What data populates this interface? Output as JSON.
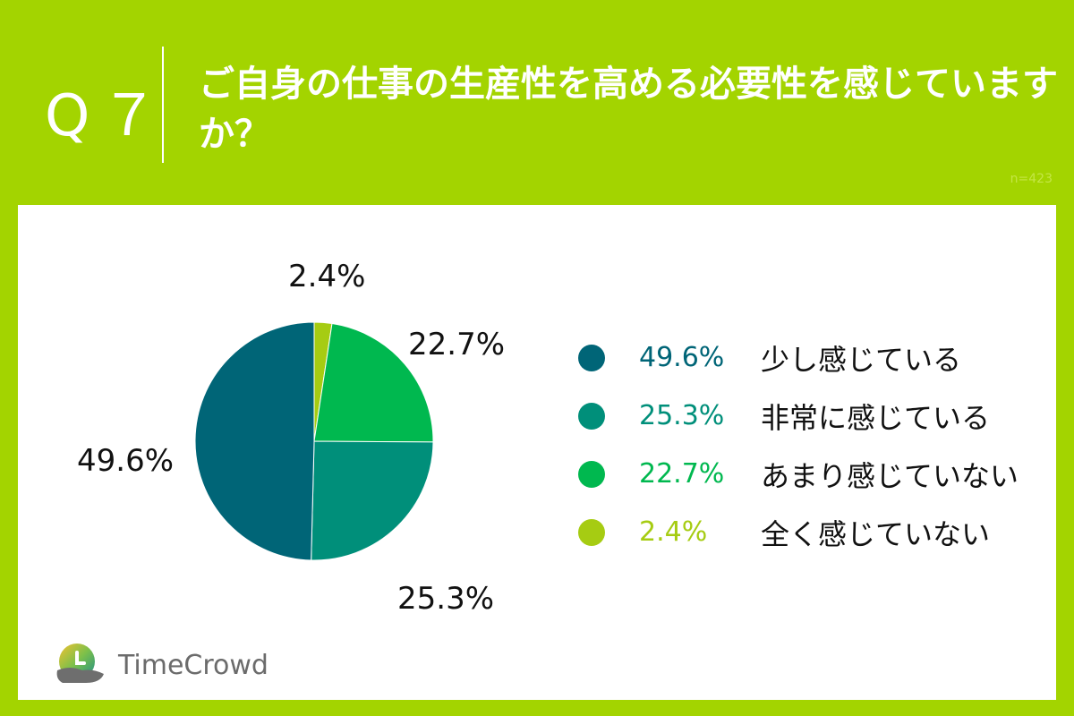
{
  "header": {
    "question_number": "Q７",
    "title": "ご自身の仕事の生産性を高める必要性を感じていますか？",
    "sample_size": "n=423"
  },
  "colors": {
    "background": "#a3d400",
    "panel": "#ffffff",
    "slice_1": "#006577",
    "slice_2": "#008f7a",
    "slice_3": "#00b84f",
    "slice_4": "#a6cc12"
  },
  "chart_data": {
    "type": "pie",
    "start": "12 o'clock",
    "direction": "clockwise",
    "slices": [
      {
        "label": "全く感じていない",
        "value": 2.4,
        "value_label": "2.4%",
        "color": "#a6cc12"
      },
      {
        "label": "あまり感じていない",
        "value": 22.7,
        "value_label": "22.7%",
        "color": "#00b84f"
      },
      {
        "label": "非常に感じている",
        "value": 25.3,
        "value_label": "25.3%",
        "color": "#008f7a"
      },
      {
        "label": "少し感じている",
        "value": 49.6,
        "value_label": "49.6%",
        "color": "#006577"
      }
    ],
    "legend": [
      {
        "value_label": "49.6%",
        "label": "少し感じている",
        "color": "#006577"
      },
      {
        "value_label": "25.3%",
        "label": "非常に感じている",
        "color": "#008f7a"
      },
      {
        "value_label": "22.7%",
        "label": "あまり感じていない",
        "color": "#00b84f"
      },
      {
        "value_label": "2.4%",
        "label": "全く感じていない",
        "color": "#a6cc12"
      }
    ],
    "legend_position": "right"
  },
  "logo": {
    "text": "TimeCrowd",
    "icon": "timecrowd-logo-icon"
  }
}
